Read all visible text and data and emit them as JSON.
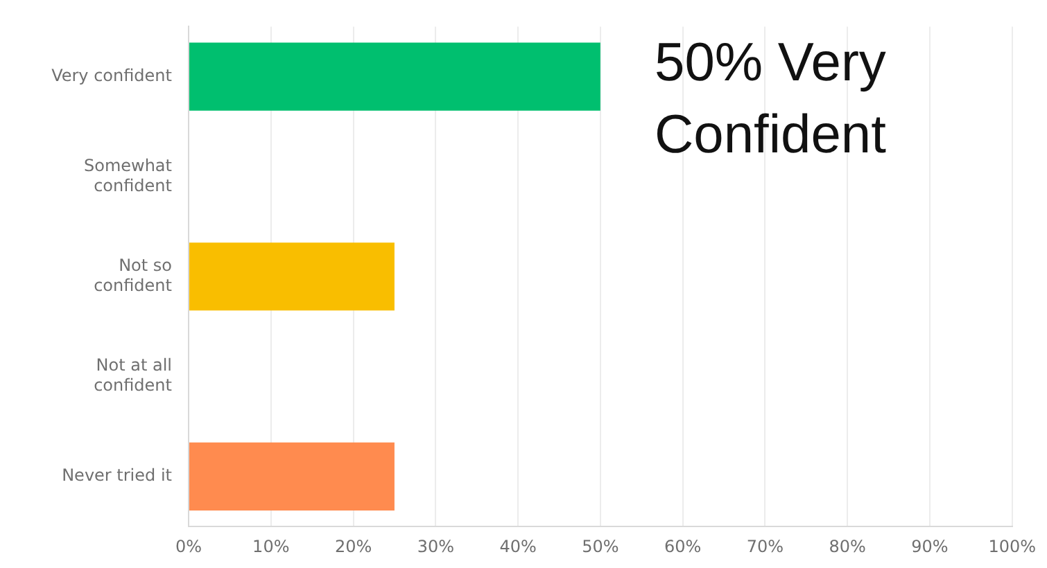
{
  "chart_data": {
    "type": "bar",
    "orientation": "horizontal",
    "categories": [
      "Very confident",
      "Somewhat confident",
      "Not so confident",
      "Not at all confident",
      "Never tried it"
    ],
    "values": [
      50,
      0,
      25,
      0,
      25
    ],
    "colors": [
      "#00bf6f",
      null,
      "#f9be00",
      null,
      "#ff8b4f"
    ],
    "xlim": [
      0,
      100
    ],
    "xticks": [
      {
        "value": 0,
        "label": "0%"
      },
      {
        "value": 10,
        "label": "10%"
      },
      {
        "value": 20,
        "label": "20%"
      },
      {
        "value": 30,
        "label": "30%"
      },
      {
        "value": 40,
        "label": "40%"
      },
      {
        "value": 50,
        "label": "50%"
      },
      {
        "value": 60,
        "label": "60%"
      },
      {
        "value": 70,
        "label": "70%"
      },
      {
        "value": 80,
        "label": "80%"
      },
      {
        "value": 90,
        "label": "90%"
      },
      {
        "value": 100,
        "label": "100%"
      }
    ],
    "grid": "x",
    "annotations": [
      "50% Very Confident"
    ]
  }
}
